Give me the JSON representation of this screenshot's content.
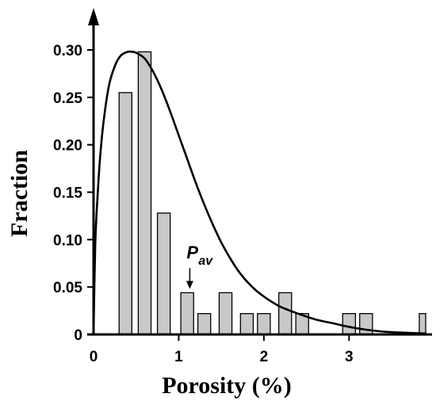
{
  "chart_data": {
    "type": "bar",
    "title": "",
    "xlabel": "Porosity (%)",
    "ylabel": "Fraction",
    "xlim": [
      0,
      3.9
    ],
    "ylim": [
      0,
      0.33
    ],
    "x_ticks": [
      0,
      1,
      2,
      3
    ],
    "x_tick_labels": [
      "0",
      "1",
      "2",
      "3"
    ],
    "y_ticks": [
      0,
      0.05,
      0.1,
      0.15,
      0.2,
      0.25,
      0.3
    ],
    "y_tick_labels": [
      "0",
      "0.05",
      "0.10",
      "0.15",
      "0.20",
      "0.25",
      "0.30"
    ],
    "grid": false,
    "legend": "none",
    "bar_width": 0.15,
    "bar_color": "#c8c8c8",
    "bar_edge_color": "#000000",
    "line_color": "#000000",
    "series": [
      {
        "type": "bar",
        "x": [
          0.375,
          0.6,
          0.825,
          1.1,
          1.3,
          1.55,
          1.8,
          2.0,
          2.25,
          2.45,
          3.0,
          3.2,
          3.9
        ],
        "values": [
          0.255,
          0.298,
          0.128,
          0.044,
          0.022,
          0.044,
          0.022,
          0.022,
          0.044,
          0.022,
          0.022,
          0.022,
          0.022
        ]
      },
      {
        "type": "line",
        "x": [
          0.0,
          0.02,
          0.05,
          0.08,
          0.12,
          0.18,
          0.25,
          0.32,
          0.4,
          0.45,
          0.5,
          0.6,
          0.7,
          0.8,
          0.9,
          1.0,
          1.1,
          1.2,
          1.3,
          1.4,
          1.5,
          1.6,
          1.7,
          1.8,
          1.9,
          2.0,
          2.1,
          2.2,
          2.4,
          2.6,
          2.8,
          3.0,
          3.2,
          3.4,
          3.6,
          3.9
        ],
        "values": [
          0.0,
          0.095,
          0.15,
          0.19,
          0.226,
          0.262,
          0.283,
          0.294,
          0.298,
          0.298,
          0.297,
          0.291,
          0.277,
          0.258,
          0.235,
          0.21,
          0.185,
          0.16,
          0.137,
          0.116,
          0.097,
          0.081,
          0.067,
          0.056,
          0.047,
          0.04,
          0.034,
          0.029,
          0.022,
          0.016,
          0.012,
          0.008,
          0.005,
          0.003,
          0.002,
          0.001
        ]
      }
    ],
    "annotations": [
      {
        "text": "P",
        "subscript": "av",
        "x": 1.13,
        "arrow_from_y": 0.07,
        "arrow_to_y": 0.048
      }
    ]
  }
}
